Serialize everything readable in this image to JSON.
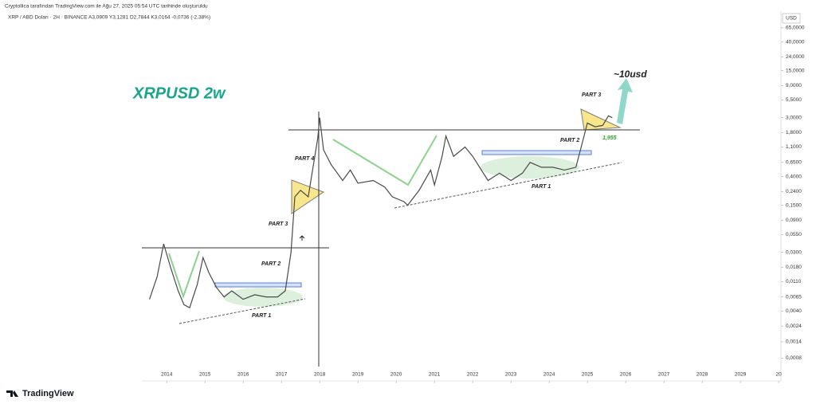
{
  "header": {
    "credit": "Cryptollica tarafından TradingView.com ile Ağu 27, 2025 05:54 UTC tarihinde oluşturuldu",
    "symbol_line": "XRP / ABD Doları · 2H · BINANCE  A3,0909  Y3,1281  D2,7844  K3,0164  -0,0736 (-2,38%)",
    "currency": "USD"
  },
  "footer": {
    "logo": "TradingView"
  },
  "chart_data": {
    "type": "line",
    "title": "XRPUSD 2w",
    "color": "#4a4a4a",
    "log_scale": true,
    "annotations": [
      "PART 1",
      "PART 2",
      "PART 3",
      "PART 4",
      "PART 1",
      "PART 2",
      "PART 3",
      "~10usd",
      "1,955"
    ],
    "x": [
      2013.55,
      2013.75,
      2013.92,
      2014.1,
      2014.3,
      2014.45,
      2014.6,
      2014.8,
      2014.95,
      2015.1,
      2015.3,
      2015.5,
      2015.7,
      2016.0,
      2016.3,
      2016.6,
      2016.9,
      2017.1,
      2017.25,
      2017.35,
      2017.5,
      2017.7,
      2017.95,
      2018.0,
      2018.1,
      2018.3,
      2018.6,
      2018.8,
      2019.0,
      2019.4,
      2019.7,
      2019.9,
      2020.2,
      2020.3,
      2020.6,
      2020.9,
      2021.0,
      2021.2,
      2021.3,
      2021.5,
      2021.8,
      2022.0,
      2022.4,
      2022.7,
      2023.0,
      2023.3,
      2023.5,
      2023.8,
      2024.1,
      2024.4,
      2024.7,
      2024.9,
      2025.0,
      2025.2,
      2025.4,
      2025.55,
      2025.65
    ],
    "values": [
      0.006,
      0.013,
      0.04,
      0.018,
      0.008,
      0.005,
      0.0045,
      0.01,
      0.025,
      0.015,
      0.009,
      0.0065,
      0.008,
      0.006,
      0.007,
      0.0065,
      0.0065,
      0.008,
      0.03,
      0.2,
      0.25,
      0.2,
      1.5,
      3.0,
      1.0,
      0.6,
      0.35,
      0.5,
      0.32,
      0.35,
      0.28,
      0.2,
      0.17,
      0.15,
      0.25,
      0.5,
      0.3,
      0.8,
      1.6,
      0.8,
      1.1,
      0.8,
      0.35,
      0.45,
      0.35,
      0.45,
      0.65,
      0.55,
      0.55,
      0.5,
      0.55,
      1.5,
      2.5,
      2.2,
      2.3,
      3.2,
      3.0
    ],
    "xlim": [
      2013.35,
      2030.06
    ],
    "xticks": [
      2014,
      2015,
      2016,
      2017,
      2018,
      2019,
      2020,
      2021,
      2022,
      2023,
      2024,
      2025,
      2026,
      2027,
      2028,
      2029,
      {
        "value": 2030,
        "label": "20"
      }
    ],
    "ylim": [
      0.0006,
      115
    ],
    "yticks": [
      {
        "value": 65,
        "label": "65,0000"
      },
      {
        "value": 40,
        "label": "40,0000"
      },
      {
        "value": 24,
        "label": "24,0000"
      },
      {
        "value": 15,
        "label": "15,0000"
      },
      {
        "value": 9,
        "label": "9,0000"
      },
      {
        "value": 5.5,
        "label": "5,5000"
      },
      {
        "value": 3,
        "label": "3,0000"
      },
      {
        "value": 1.8,
        "label": "1,8000"
      },
      {
        "value": 1.1,
        "label": "1,1000"
      },
      {
        "value": 0.65,
        "label": "0,6500"
      },
      {
        "value": 0.4,
        "label": "0,4000"
      },
      {
        "value": 0.24,
        "label": "0,2400"
      },
      {
        "value": 0.15,
        "label": "0,1500"
      },
      {
        "value": 0.09,
        "label": "0,0900"
      },
      {
        "value": 0.055,
        "label": "0,0550"
      },
      {
        "value": 0.03,
        "label": "0,0300"
      },
      {
        "value": 0.018,
        "label": "0,0180"
      },
      {
        "value": 0.011,
        "label": "0,0110"
      },
      {
        "value": 0.0065,
        "label": "0,0065"
      },
      {
        "value": 0.004,
        "label": "0,0040"
      },
      {
        "value": 0.0024,
        "label": "0,0024"
      },
      {
        "value": 0.0014,
        "label": "0,0014"
      },
      {
        "value": 0.0008,
        "label": "0,0008"
      }
    ]
  }
}
